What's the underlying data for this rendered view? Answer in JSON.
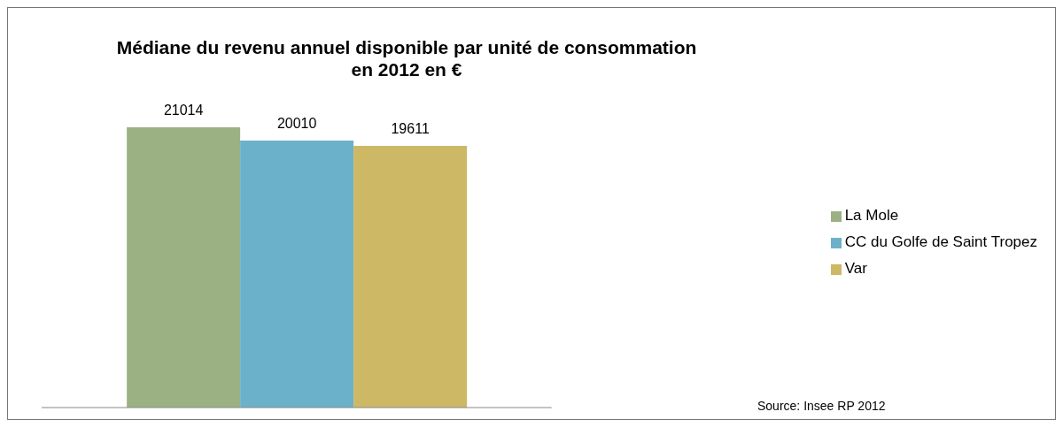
{
  "chart_data": {
    "type": "bar",
    "title": "Médiane du revenu annuel disponible par unité de consommation\nen 2012 en €",
    "categories": [
      null
    ],
    "series": [
      {
        "name": "La Mole",
        "color": "#9bb183",
        "values": [
          21014
        ]
      },
      {
        "name": "CC du Golfe de Saint Tropez",
        "color": "#6bb1c9",
        "values": [
          20010
        ]
      },
      {
        "name": "Var",
        "color": "#cdb865",
        "values": [
          19611
        ]
      }
    ],
    "data_labels": true,
    "legend": "right",
    "grid": false,
    "annotations": [
      "Source: Insee RP 2012"
    ]
  }
}
